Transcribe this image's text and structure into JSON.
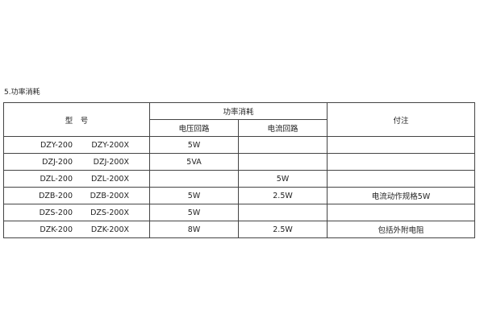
{
  "section_title": "5.功率消耗",
  "table": {
    "header": {
      "model": "型　号",
      "power_consumption": "功率消耗",
      "voltage_circuit": "电压回路",
      "current_circuit": "电流回路",
      "notes": "付注"
    },
    "rows": [
      {
        "model_a": "DZY-200",
        "model_b": "DZY-200X",
        "voltage": "5W",
        "current": "",
        "note": ""
      },
      {
        "model_a": "DZJ-200",
        "model_b": "DZJ-200X",
        "voltage": "5VA",
        "current": "",
        "note": ""
      },
      {
        "model_a": "DZL-200",
        "model_b": "DZL-200X",
        "voltage": "",
        "current": "5W",
        "note": ""
      },
      {
        "model_a": "DZB-200",
        "model_b": "DZB-200X",
        "voltage": "5W",
        "current": "2.5W",
        "note": "电流动作规格5W"
      },
      {
        "model_a": "DZS-200",
        "model_b": "DZS-200X",
        "voltage": "5W",
        "current": "",
        "note": ""
      },
      {
        "model_a": "DZK-200",
        "model_b": "DZK-200X",
        "voltage": "8W",
        "current": "2.5W",
        "note": "包括外附电阻"
      }
    ]
  }
}
